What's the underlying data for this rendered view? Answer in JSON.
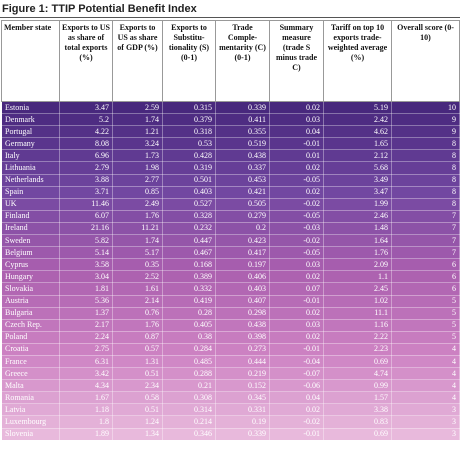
{
  "title": "Figure 1: TTIP Potential Benefit Index",
  "table": {
    "columns": [
      "Member state",
      "Exports to US as share of total exports (%)",
      "Exports to US as share of GDP (%)",
      "Exports to Substitu-tionality (S) (0-1)",
      "Trade Comple-mentarity (C) (0-1)",
      "Summary measure (trade S minus trade C)",
      "Tariff on top 10 exports trade-weighted average (%)",
      "Overall score (0-10)"
    ],
    "rows": [
      [
        "Estonia",
        3.47,
        2.59,
        0.315,
        0.339,
        0.02,
        5.19,
        10
      ],
      [
        "Denmark",
        5.2,
        1.74,
        0.379,
        0.411,
        0.03,
        2.42,
        9
      ],
      [
        "Portugal",
        4.22,
        1.21,
        0.318,
        0.355,
        0.04,
        4.62,
        9
      ],
      [
        "Germany",
        8.08,
        3.24,
        0.53,
        0.519,
        -0.01,
        1.65,
        8
      ],
      [
        "Italy",
        6.96,
        1.73,
        0.428,
        0.438,
        0.01,
        2.12,
        8
      ],
      [
        "Lithuania",
        2.79,
        1.98,
        0.319,
        0.337,
        0.02,
        5.68,
        8
      ],
      [
        "Netherlands",
        3.88,
        2.77,
        0.501,
        0.453,
        -0.05,
        3.49,
        8
      ],
      [
        "Spain",
        3.71,
        0.85,
        0.403,
        0.421,
        0.02,
        3.47,
        8
      ],
      [
        "UK",
        11.46,
        2.49,
        0.527,
        0.505,
        -0.02,
        1.99,
        8
      ],
      [
        "Finland",
        6.07,
        1.76,
        0.328,
        0.279,
        -0.05,
        2.46,
        7
      ],
      [
        "Ireland",
        21.16,
        11.21,
        0.232,
        0.2,
        -0.03,
        1.48,
        7
      ],
      [
        "Sweden",
        5.82,
        1.74,
        0.447,
        0.423,
        -0.02,
        1.64,
        7
      ],
      [
        "Belgium",
        5.14,
        5.17,
        0.467,
        0.417,
        -0.05,
        1.76,
        7
      ],
      [
        "Cyprus",
        3.58,
        0.35,
        0.168,
        0.197,
        0.03,
        2.09,
        6
      ],
      [
        "Hungary",
        3.04,
        2.52,
        0.389,
        0.406,
        0.02,
        1.1,
        6
      ],
      [
        "Slovakia",
        1.81,
        1.61,
        0.332,
        0.403,
        0.07,
        2.45,
        6
      ],
      [
        "Austria",
        5.36,
        2.14,
        0.419,
        0.407,
        -0.01,
        1.02,
        5
      ],
      [
        "Bulgaria",
        1.37,
        0.76,
        0.28,
        0.298,
        0.02,
        11.1,
        5
      ],
      [
        "Czech Rep.",
        2.17,
        1.76,
        0.405,
        0.438,
        0.03,
        1.16,
        5
      ],
      [
        "Poland",
        2.24,
        0.87,
        0.38,
        0.398,
        0.02,
        2.22,
        5
      ],
      [
        "Croatia",
        2.75,
        0.57,
        0.284,
        0.273,
        -0.01,
        2.23,
        4
      ],
      [
        "France",
        6.31,
        1.31,
        0.485,
        0.444,
        -0.04,
        0.69,
        4
      ],
      [
        "Greece",
        3.42,
        0.51,
        0.288,
        0.219,
        -0.07,
        4.74,
        4
      ],
      [
        "Malta",
        4.34,
        2.34,
        0.21,
        0.152,
        -0.06,
        0.99,
        4
      ],
      [
        "Romania",
        1.67,
        0.58,
        0.308,
        0.345,
        0.04,
        1.57,
        4
      ],
      [
        "Latvia",
        1.18,
        0.51,
        0.314,
        0.331,
        0.02,
        3.38,
        3
      ],
      [
        "Luxembourg",
        1.8,
        1.24,
        0.214,
        0.19,
        -0.02,
        0.83,
        3
      ],
      [
        "Slovenia",
        1.89,
        1.34,
        0.346,
        0.339,
        -0.01,
        0.69,
        3
      ]
    ]
  }
}
